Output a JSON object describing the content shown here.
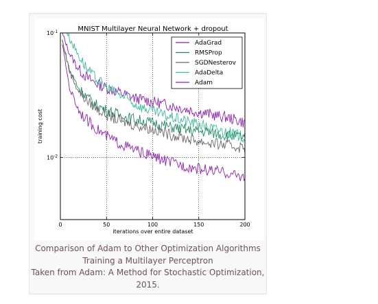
{
  "chart_data": {
    "type": "line",
    "title": "MNIST Multilayer Neural Network + dropout",
    "xlabel": "iterations over entire dataset",
    "ylabel": "training cost",
    "xlim": [
      0,
      200
    ],
    "ylim_log10": [
      -2.5,
      -1
    ],
    "yscale": "log",
    "grid": true,
    "legend_position": "top-right",
    "x_ticks": [
      0,
      50,
      100,
      150,
      200
    ],
    "x_tick_labels": [
      "0",
      "50",
      "100",
      "150",
      "200"
    ],
    "y_ticks": [
      0.1,
      0.01
    ],
    "y_tick_labels": [
      {
        "base": "10",
        "exp": "-1"
      },
      {
        "base": "10",
        "exp": "-2"
      }
    ],
    "x": [
      2,
      10,
      20,
      30,
      40,
      50,
      60,
      70,
      80,
      90,
      100,
      110,
      120,
      130,
      140,
      150,
      160,
      170,
      180,
      190,
      200
    ],
    "series": [
      {
        "name": "AdaGrad",
        "color": "#8c1fb0",
        "values": [
          0.1,
          0.068,
          0.051,
          0.043,
          0.039,
          0.036,
          0.034,
          0.032,
          0.03,
          0.029,
          0.028,
          0.027,
          0.026,
          0.025,
          0.024,
          0.023,
          0.0225,
          0.0215,
          0.021,
          0.02,
          0.019
        ]
      },
      {
        "name": "RMSProp",
        "color": "#1d8a5c",
        "values": [
          0.088,
          0.05,
          0.036,
          0.03,
          0.026,
          0.024,
          0.0225,
          0.021,
          0.0205,
          0.0195,
          0.019,
          0.0183,
          0.0175,
          0.017,
          0.0165,
          0.0162,
          0.016,
          0.0155,
          0.015,
          0.0148,
          0.0145
        ]
      },
      {
        "name": "SGDNesterov",
        "color": "#6e6468",
        "values": [
          0.087,
          0.049,
          0.034,
          0.028,
          0.0245,
          0.022,
          0.0203,
          0.0192,
          0.0183,
          0.0176,
          0.0168,
          0.016,
          0.0152,
          0.0146,
          0.014,
          0.0135,
          0.0131,
          0.0128,
          0.0125,
          0.0122,
          0.012
        ]
      },
      {
        "name": "AdaDelta",
        "color": "#3ab89a",
        "values": [
          0.125,
          0.09,
          0.066,
          0.05,
          0.042,
          0.037,
          0.033,
          0.03,
          0.027,
          0.025,
          0.0235,
          0.022,
          0.021,
          0.0202,
          0.0193,
          0.0185,
          0.0175,
          0.0168,
          0.016,
          0.0153,
          0.0145
        ]
      },
      {
        "name": "Adam",
        "color": "#8c1fb0",
        "values": [
          0.082,
          0.036,
          0.024,
          0.0195,
          0.0168,
          0.0148,
          0.0134,
          0.0124,
          0.0115,
          0.0108,
          0.0102,
          0.0096,
          0.0091,
          0.0087,
          0.0084,
          0.0081,
          0.0079,
          0.0077,
          0.0075,
          0.0072,
          0.007
        ]
      }
    ]
  },
  "caption": {
    "lines": [
      "Comparison of Adam to Other Optimization Algorithms",
      "Training a Multilayer Perceptron",
      "Taken from Adam: A Method for Stochastic Optimization,",
      "2015."
    ]
  }
}
